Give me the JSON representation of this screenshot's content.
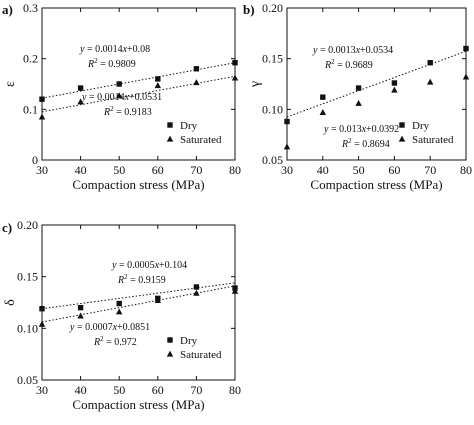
{
  "chart_data": [
    {
      "panel_label": "a)",
      "type": "scatter",
      "xlabel": "Compaction stress (MPa)",
      "ylabel": "ε",
      "xlim": [
        30,
        80
      ],
      "ylim": [
        0,
        0.3
      ],
      "xticks": [
        "30",
        "40",
        "50",
        "60",
        "70",
        "80"
      ],
      "yticks": [
        "0",
        "0.1",
        "0.2",
        "0.3"
      ],
      "grid": false,
      "legend_position": "bottom-right",
      "series": [
        {
          "name": "Dry",
          "marker": "square",
          "x": [
            30,
            40,
            50,
            60,
            70,
            80
          ],
          "y": [
            0.12,
            0.142,
            0.15,
            0.16,
            0.18,
            0.192
          ]
        },
        {
          "name": "Saturated",
          "marker": "triangle",
          "x": [
            30,
            40,
            50,
            60,
            70,
            80
          ],
          "y": [
            0.085,
            0.115,
            0.127,
            0.147,
            0.153,
            0.162
          ]
        }
      ],
      "fits": [
        {
          "slope": 0.0014,
          "intercept": 0.08,
          "equation": "y = 0.0014x+0.08",
          "r2_label": "R",
          "r2_value": "= 0.9809"
        },
        {
          "slope": 0.0014,
          "intercept": 0.0531,
          "equation": "y = 0.0014x+0.0531",
          "r2_label": "R",
          "r2_value": "= 0.9183"
        }
      ]
    },
    {
      "panel_label": "b)",
      "type": "scatter",
      "xlabel": "Compaction stress (MPa)",
      "ylabel": "γ",
      "xlim": [
        30,
        80
      ],
      "ylim": [
        0.05,
        0.2
      ],
      "xticks": [
        "30",
        "40",
        "50",
        "60",
        "70",
        "80"
      ],
      "yticks": [
        "0.05",
        "0.10",
        "0.15",
        "0.20"
      ],
      "grid": false,
      "legend_position": "bottom-right",
      "series": [
        {
          "name": "Dry",
          "marker": "square",
          "x": [
            30,
            40,
            50,
            60,
            70,
            80
          ],
          "y": [
            0.088,
            0.112,
            0.121,
            0.126,
            0.146,
            0.16
          ]
        },
        {
          "name": "Saturated",
          "marker": "triangle",
          "x": [
            30,
            40,
            50,
            60,
            70,
            80
          ],
          "y": [
            0.063,
            0.097,
            0.106,
            0.119,
            0.127,
            0.132
          ]
        }
      ],
      "fits": [
        {
          "slope": 0.0013,
          "intercept": 0.0534,
          "equation": "y = 0.0013x+0.0534",
          "r2_label": "R",
          "r2_value": "= 0.9689"
        },
        {
          "slope": 0.013,
          "intercept": 0.0392,
          "equation": "y = 0.013x+0.0392",
          "r2_label": "R",
          "r2_value": "= 0.8694"
        }
      ]
    },
    {
      "panel_label": "c)",
      "type": "scatter",
      "xlabel": "Compaction stress (MPa)",
      "ylabel": "δ",
      "xlim": [
        30,
        80
      ],
      "ylim": [
        0.05,
        0.2
      ],
      "xticks": [
        "30",
        "40",
        "50",
        "60",
        "70",
        "80"
      ],
      "yticks": [
        "0.05",
        "0.10",
        "0.15",
        "0.20"
      ],
      "grid": false,
      "legend_position": "bottom-right",
      "series": [
        {
          "name": "Dry",
          "marker": "square",
          "x": [
            30,
            40,
            50,
            60,
            70,
            80
          ],
          "y": [
            0.119,
            0.12,
            0.124,
            0.129,
            0.14,
            0.139
          ]
        },
        {
          "name": "Saturated",
          "marker": "triangle",
          "x": [
            30,
            40,
            50,
            60,
            70,
            80
          ],
          "y": [
            0.104,
            0.112,
            0.116,
            0.127,
            0.134,
            0.136
          ]
        }
      ],
      "fits": [
        {
          "slope": 0.0005,
          "intercept": 0.104,
          "equation": "y = 0.0005x+0.104",
          "r2_label": "R",
          "r2_value": "= 0.9159"
        },
        {
          "slope": 0.0007,
          "intercept": 0.0851,
          "equation": "y = 0.0007x+0.0851",
          "r2_label": "R",
          "r2_value": "= 0.972"
        }
      ]
    }
  ]
}
